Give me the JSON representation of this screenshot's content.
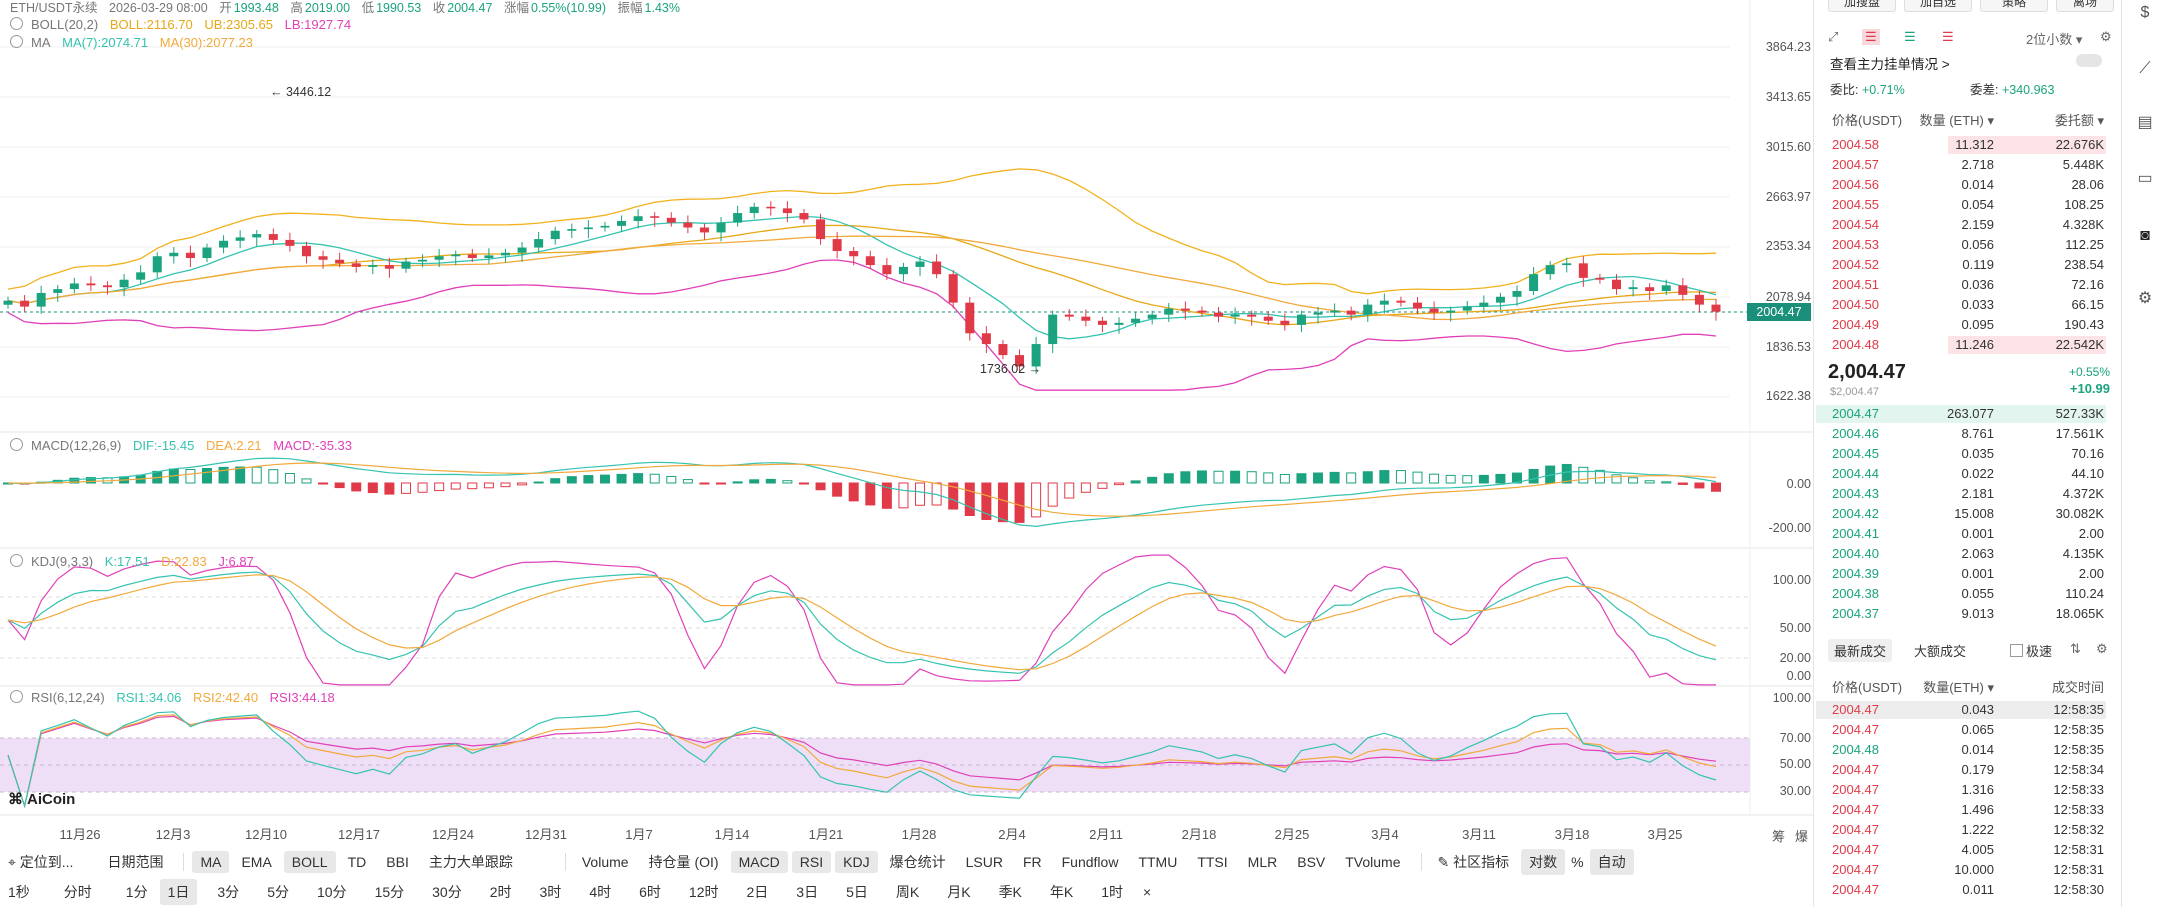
{
  "header": {
    "symbol": "ETH/USDT永续",
    "time": "2026-03-29 08:00",
    "open_label": "开",
    "open": "1993.48",
    "high_label": "高",
    "high": "2019.00",
    "low_label": "低",
    "low": "1990.53",
    "close_label": "收",
    "close": "2004.47",
    "change_label": "涨幅",
    "change": "0.55%(10.99)",
    "amp_label": "振幅",
    "amp": "1.43%"
  },
  "indicators": {
    "boll": {
      "name": "BOLL(20,2)",
      "mid": "BOLL:2116.70",
      "ub": "UB:2305.65",
      "lb": "LB:1927.74"
    },
    "ma": {
      "name": "MA",
      "ma7": "MA(7):2074.71",
      "ma30": "MA(30):2077.23"
    },
    "macd": {
      "name": "MACD(12,26,9)",
      "dif": "DIF:-15.45",
      "dea": "DEA:2.21",
      "macd": "MACD:-35.33"
    },
    "kdj": {
      "name": "KDJ(9,3,3)",
      "k": "K:17.51",
      "d": "D:22.83",
      "j": "J:6.87"
    },
    "rsi": {
      "name": "RSI(6,12,24)",
      "r1": "RSI1:34.06",
      "r2": "RSI2:42.40",
      "r3": "RSI3:44.18"
    }
  },
  "price_axis": [
    "3864.23",
    "3413.65",
    "3015.60",
    "2663.97",
    "2353.34",
    "2078.94",
    "1836.53",
    "1622.38"
  ],
  "last_price": "2004.47",
  "annotations": {
    "high_mark": "← 3446.12",
    "low_mark": "1736.02 →"
  },
  "macd_axis": [
    "0.00",
    "-200.00"
  ],
  "kdj_axis": [
    "100.00",
    "50.00",
    "20.00",
    "0.00"
  ],
  "rsi_axis": [
    "100.00",
    "70.00",
    "50.00",
    "30.00"
  ],
  "date_axis": [
    "11月26",
    "12月3",
    "12月10",
    "12月17",
    "12月24",
    "12月31",
    "1月7",
    "1月14",
    "1月21",
    "1月28",
    "2月4",
    "2月11",
    "2月18",
    "2月25",
    "3月4",
    "3月11",
    "3月18",
    "3月25"
  ],
  "axis_corner": [
    "筹",
    "爆"
  ],
  "watermark": "AiCoin",
  "colors": {
    "up": "#1aa37e",
    "down": "#e03a48",
    "boll_mid": "#e6a817",
    "boll_band_upper": "#f2b21e",
    "boll_lower": "#e040b8",
    "ma7": "#35c3b0",
    "ma30": "#f2a93b",
    "rsi_band": "#ead7f5"
  },
  "chart_data": {
    "type": "candlestick",
    "close_series": [
      2060,
      2030,
      2100,
      2120,
      2150,
      2140,
      2130,
      2170,
      2210,
      2300,
      2320,
      2290,
      2350,
      2390,
      2410,
      2430,
      2395,
      2360,
      2300,
      2280,
      2260,
      2240,
      2250,
      2230,
      2270,
      2280,
      2300,
      2310,
      2290,
      2305,
      2320,
      2350,
      2400,
      2450,
      2460,
      2470,
      2480,
      2510,
      2540,
      2530,
      2500,
      2470,
      2440,
      2500,
      2560,
      2600,
      2590,
      2560,
      2520,
      2400,
      2330,
      2300,
      2250,
      2200,
      2240,
      2270,
      2200,
      2050,
      1900,
      1850,
      1800,
      1750,
      1850,
      1990,
      1980,
      1960,
      1940,
      1950,
      1970,
      1990,
      2020,
      2010,
      2000,
      1980,
      1990,
      1980,
      1960,
      1940,
      1990,
      2000,
      2010,
      1990,
      2040,
      2060,
      2050,
      2020,
      2000,
      2010,
      2030,
      2050,
      2080,
      2110,
      2200,
      2250,
      2260,
      2180,
      2170,
      2120,
      2130,
      2110,
      2140,
      2090,
      2040,
      2004.47
    ],
    "boll": {
      "mid": "2116.70",
      "ub": "2305.65",
      "lb": "1927.74"
    },
    "ma": {
      "ma7": "2074.71",
      "ma30": "2077.23"
    },
    "high": "3446.12",
    "low": "1736.02",
    "last": "2004.47"
  },
  "toolbar1": {
    "items": [
      {
        "label": "定位到...",
        "icon": "locate-icon"
      },
      {
        "label": "日期范围"
      },
      {
        "label": "MA",
        "active": true
      },
      {
        "label": "EMA"
      },
      {
        "label": "BOLL",
        "active": true
      },
      {
        "label": "TD"
      },
      {
        "label": "BBI"
      },
      {
        "label": "主力大单跟踪"
      },
      {
        "label": "Volume"
      },
      {
        "label": "持仓量 (OI)"
      },
      {
        "label": "MACD",
        "active": true
      },
      {
        "label": "RSI",
        "active": true
      },
      {
        "label": "KDJ",
        "active": true
      },
      {
        "label": "爆仓统计"
      },
      {
        "label": "LSUR"
      },
      {
        "label": "FR"
      },
      {
        "label": "Fundflow"
      },
      {
        "label": "TTMU"
      },
      {
        "label": "TTSI"
      },
      {
        "label": "MLR"
      },
      {
        "label": "BSV"
      },
      {
        "label": "TVolume"
      },
      {
        "label": "社区指标",
        "icon": "edit-icon"
      },
      {
        "label": "对数",
        "active": true
      },
      {
        "label": "%"
      },
      {
        "label": "自动",
        "active": true
      }
    ]
  },
  "toolbar2": {
    "items": [
      "1秒",
      "分时",
      "1分",
      "1日",
      "3分",
      "5分",
      "10分",
      "15分",
      "30分",
      "2时",
      "3时",
      "4时",
      "6时",
      "12时",
      "2日",
      "3日",
      "5日",
      "周K",
      "月K",
      "季K",
      "年K",
      "1时",
      "×"
    ],
    "active": "1日"
  },
  "side": {
    "top_buttons": [
      "加搜盘",
      "加自选",
      "策略",
      "离场"
    ],
    "decimals": "2位小数",
    "main_orders": "查看主力挂单情况 >",
    "wei_bi_label": "委比:",
    "wei_bi": "+0.71%",
    "wei_cha_label": "委差:",
    "wei_cha": "+340.963",
    "ob_headers": [
      "价格(USDT)",
      "数量 (ETH) ▾",
      "委托额 ▾"
    ],
    "asks": [
      [
        "2004.58",
        "11.312",
        "22.676K"
      ],
      [
        "2004.57",
        "2.718",
        "5.448K"
      ],
      [
        "2004.56",
        "0.014",
        "28.06"
      ],
      [
        "2004.55",
        "0.054",
        "108.25"
      ],
      [
        "2004.54",
        "2.159",
        "4.328K"
      ],
      [
        "2004.53",
        "0.056",
        "112.25"
      ],
      [
        "2004.52",
        "0.119",
        "238.54"
      ],
      [
        "2004.51",
        "0.036",
        "72.16"
      ],
      [
        "2004.50",
        "0.033",
        "66.15"
      ],
      [
        "2004.49",
        "0.095",
        "190.43"
      ],
      [
        "2004.48",
        "11.246",
        "22.542K"
      ]
    ],
    "mid_price": "2,004.47",
    "mid_sub": "$2,004.47",
    "mid_pct": "+0.55%",
    "mid_change": "+10.99",
    "bids": [
      [
        "2004.47",
        "263.077",
        "527.33K"
      ],
      [
        "2004.46",
        "8.761",
        "17.561K"
      ],
      [
        "2004.45",
        "0.035",
        "70.16"
      ],
      [
        "2004.44",
        "0.022",
        "44.10"
      ],
      [
        "2004.43",
        "2.181",
        "4.372K"
      ],
      [
        "2004.42",
        "15.008",
        "30.082K"
      ],
      [
        "2004.41",
        "0.001",
        "2.00"
      ],
      [
        "2004.40",
        "2.063",
        "4.135K"
      ],
      [
        "2004.39",
        "0.001",
        "2.00"
      ],
      [
        "2004.38",
        "0.055",
        "110.24"
      ],
      [
        "2004.37",
        "9.013",
        "18.065K"
      ]
    ],
    "trades_tabs": [
      "最新成交",
      "大额成交"
    ],
    "fast_label": "极速",
    "trade_headers": [
      "价格(USDT)",
      "数量(ETH) ▾",
      "成交时间"
    ],
    "trades": [
      [
        "2004.47",
        "0.043",
        "12:58:35",
        "down"
      ],
      [
        "2004.47",
        "0.065",
        "12:58:35",
        "down"
      ],
      [
        "2004.48",
        "0.014",
        "12:58:35",
        "up"
      ],
      [
        "2004.47",
        "0.179",
        "12:58:34",
        "down"
      ],
      [
        "2004.47",
        "1.316",
        "12:58:33",
        "down"
      ],
      [
        "2004.47",
        "1.496",
        "12:58:33",
        "down"
      ],
      [
        "2004.47",
        "1.222",
        "12:58:32",
        "down"
      ],
      [
        "2004.47",
        "4.005",
        "12:58:31",
        "down"
      ],
      [
        "2004.47",
        "10.000",
        "12:58:31",
        "down"
      ],
      [
        "2004.47",
        "0.011",
        "12:58:30",
        "down"
      ]
    ]
  },
  "rail_icons": [
    "dollar-icon",
    "line-chart-icon",
    "analytics-icon",
    "card-icon",
    "robot-icon",
    "settings-icon"
  ]
}
